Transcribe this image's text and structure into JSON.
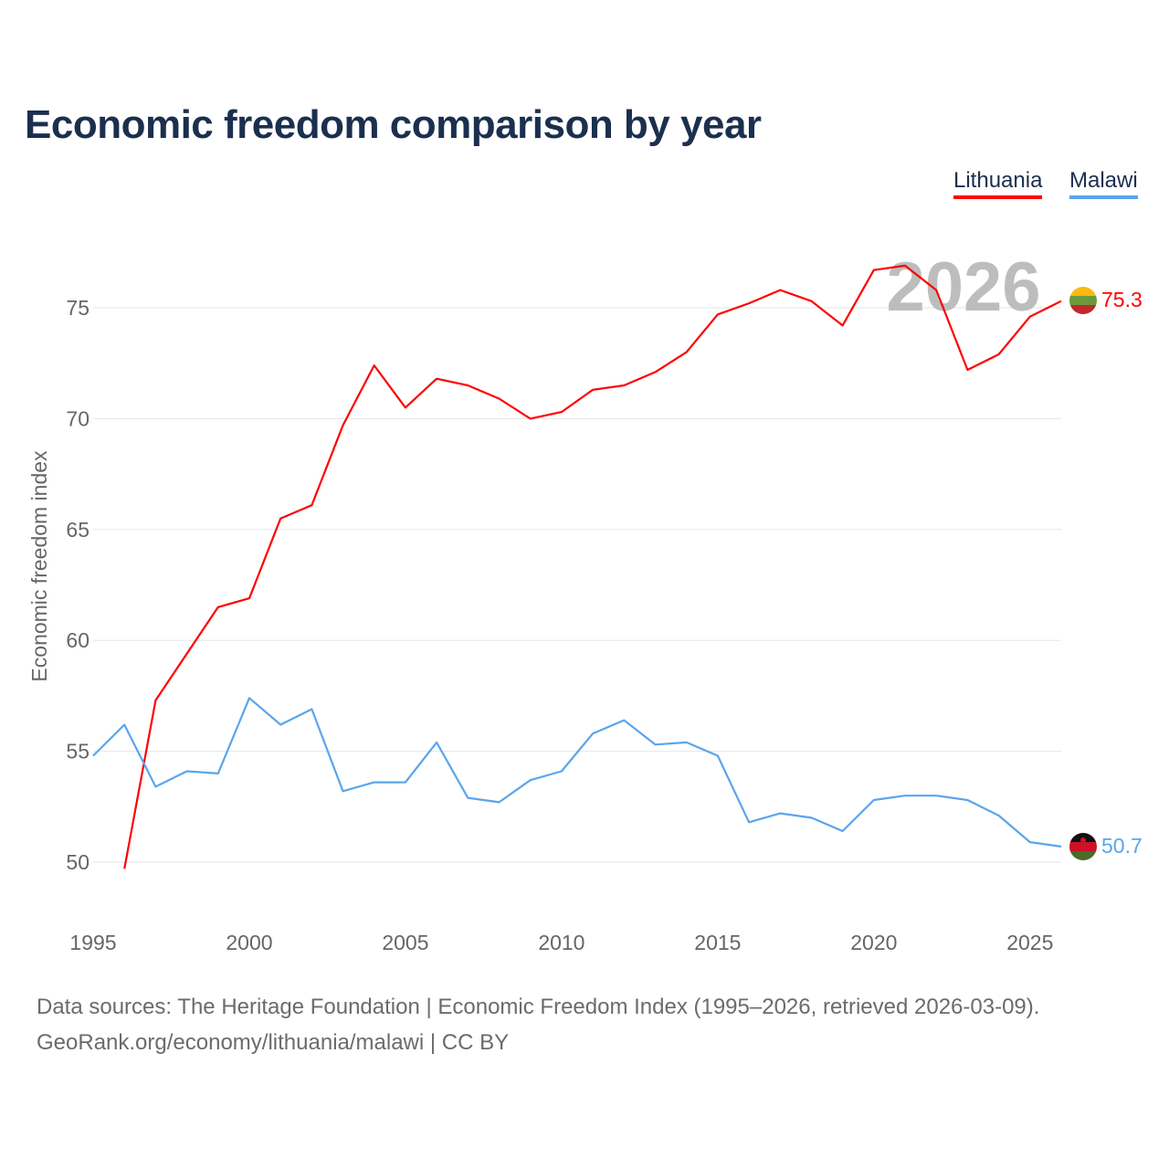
{
  "title": "Economic freedom comparison by year",
  "year_watermark": "2026",
  "footer": {
    "line1": "Data sources: The Heritage Foundation | Economic Freedom Index (1995–2026, retrieved 2026-03-09).",
    "line2": "GeoRank.org/economy/lithuania/malawi | CC BY"
  },
  "chart_data": {
    "type": "line",
    "title": "Economic freedom comparison by year",
    "xlabel": "",
    "ylabel": "Economic freedom index",
    "xlim": [
      1995,
      2026
    ],
    "ylim": [
      50,
      75
    ],
    "xticks": [
      "1995",
      "2000",
      "2005",
      "2010",
      "2015",
      "2020",
      "2025"
    ],
    "yticks": [
      "50",
      "55",
      "60",
      "65",
      "70",
      "75"
    ],
    "grid": true,
    "legend_position": "top-right",
    "series": [
      {
        "name": "Lithuania",
        "color": "#ff0000",
        "end_label": "75.3",
        "flag": "lithuania-flag",
        "x": [
          1996,
          1997,
          1998,
          1999,
          2000,
          2001,
          2002,
          2003,
          2004,
          2005,
          2006,
          2007,
          2008,
          2009,
          2010,
          2011,
          2012,
          2013,
          2014,
          2015,
          2016,
          2017,
          2018,
          2019,
          2020,
          2021,
          2022,
          2023,
          2024,
          2025,
          2026
        ],
        "values": [
          49.7,
          57.3,
          59.4,
          61.5,
          61.9,
          65.5,
          66.1,
          69.7,
          72.4,
          70.5,
          71.8,
          71.5,
          70.9,
          70.0,
          70.3,
          71.3,
          71.5,
          72.1,
          73.0,
          74.7,
          75.2,
          75.8,
          75.3,
          74.2,
          76.7,
          76.9,
          75.8,
          72.2,
          72.9,
          74.6,
          75.3
        ]
      },
      {
        "name": "Malawi",
        "color": "#5aa5ec",
        "end_label": "50.7",
        "flag": "malawi-flag",
        "x": [
          1995,
          1996,
          1997,
          1998,
          1999,
          2000,
          2001,
          2002,
          2003,
          2004,
          2005,
          2006,
          2007,
          2008,
          2009,
          2010,
          2011,
          2012,
          2013,
          2014,
          2015,
          2016,
          2017,
          2018,
          2019,
          2020,
          2021,
          2022,
          2023,
          2024,
          2025,
          2026
        ],
        "values": [
          54.8,
          56.2,
          53.4,
          54.1,
          54.0,
          57.4,
          56.2,
          56.9,
          53.2,
          53.6,
          53.6,
          55.4,
          52.9,
          52.7,
          53.7,
          54.1,
          55.8,
          56.4,
          55.3,
          55.4,
          54.8,
          51.8,
          52.2,
          52.0,
          51.4,
          52.8,
          53.0,
          53.0,
          52.8,
          52.1,
          50.9,
          50.7
        ]
      }
    ]
  }
}
